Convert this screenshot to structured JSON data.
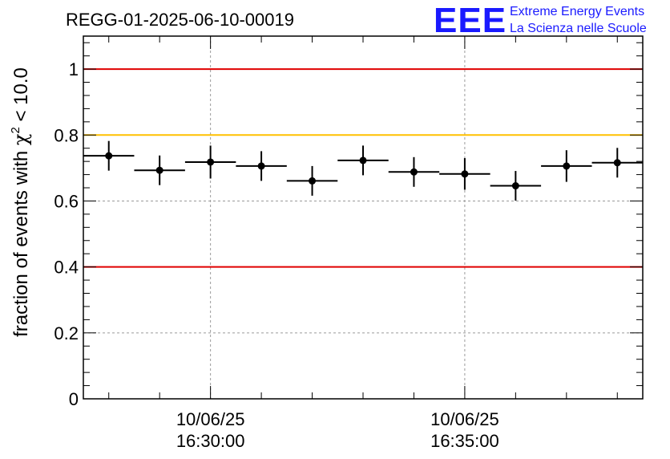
{
  "chart_data": {
    "type": "scatter",
    "title": "REGG-01-2025-06-10-00019",
    "ylabel_prefix": "fraction of events with ",
    "ylabel_chi": "χ",
    "ylabel_sup": "2",
    "ylabel_suffix": " < 10.0",
    "xlabel": "",
    "ylim": [
      0,
      1.1
    ],
    "xlim": [
      "2025-06-10 16:27:30",
      "2025-06-10 16:38:30"
    ],
    "grid": true,
    "y_ticks": [
      {
        "value": 0,
        "label": "0"
      },
      {
        "value": 0.2,
        "label": "0.2"
      },
      {
        "value": 0.4,
        "label": "0.4"
      },
      {
        "value": 0.6,
        "label": "0.6"
      },
      {
        "value": 0.8,
        "label": "0.8"
      },
      {
        "value": 1,
        "label": "1"
      }
    ],
    "x_ticks": [
      {
        "value": "2025-06-10 16:30:00",
        "date": "10/06/25",
        "time": "16:30:00"
      },
      {
        "value": "2025-06-10 16:35:00",
        "date": "10/06/25",
        "time": "16:35:00"
      }
    ],
    "reference_lines": [
      {
        "y": 1.0,
        "color": "#e00000"
      },
      {
        "y": 0.8,
        "color": "#ffc000"
      },
      {
        "y": 0.4,
        "color": "#e00000"
      }
    ],
    "points": [
      {
        "x": "2025-06-10 16:28:00",
        "y": 0.737,
        "err": 0.045
      },
      {
        "x": "2025-06-10 16:29:00",
        "y": 0.693,
        "err": 0.045
      },
      {
        "x": "2025-06-10 16:30:00",
        "y": 0.718,
        "err": 0.05
      },
      {
        "x": "2025-06-10 16:31:00",
        "y": 0.706,
        "err": 0.045
      },
      {
        "x": "2025-06-10 16:32:00",
        "y": 0.661,
        "err": 0.045
      },
      {
        "x": "2025-06-10 16:33:00",
        "y": 0.723,
        "err": 0.045
      },
      {
        "x": "2025-06-10 16:34:00",
        "y": 0.688,
        "err": 0.045
      },
      {
        "x": "2025-06-10 16:35:00",
        "y": 0.682,
        "err": 0.048
      },
      {
        "x": "2025-06-10 16:36:00",
        "y": 0.646,
        "err": 0.045
      },
      {
        "x": "2025-06-10 16:37:00",
        "y": 0.706,
        "err": 0.048
      },
      {
        "x": "2025-06-10 16:38:00",
        "y": 0.716,
        "err": 0.045
      }
    ],
    "x_error_half_width_seconds": 30
  },
  "logo": {
    "mark": "EEE",
    "line1": "Extreme Energy Events",
    "line2": "La Scienza nelle Scuole",
    "color": "#1a1aff"
  }
}
